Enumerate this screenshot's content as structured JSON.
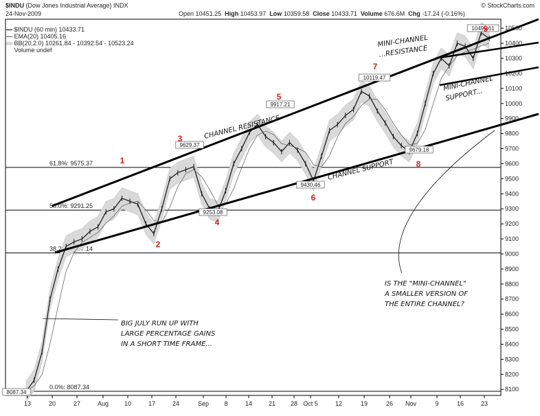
{
  "header": {
    "symbol": "$INDU",
    "name": "(Dow Jones Industrial Average)",
    "exchange": "INDX",
    "date": "24-Nov-2009",
    "credit": "© StockCharts.com",
    "ohlc": [
      {
        "label": "Open",
        "value": "10451.25"
      },
      {
        "label": "High",
        "value": "10453.97"
      },
      {
        "label": "Low",
        "value": "10359.58"
      },
      {
        "label": "Close",
        "value": "10433.71"
      },
      {
        "label": "Volume",
        "value": "676.6M"
      },
      {
        "label": "Chg",
        "value": "-17.24 (-0.16%)"
      }
    ]
  },
  "legend": {
    "price": "$INDU (60 min) 10433.71",
    "ema": "EMA(20) 10405.16",
    "bb": "BB(20,2.0) 10261.84 - 10392.54 - 10523.24",
    "volume": "Volume undef"
  },
  "chart_data": {
    "type": "line",
    "series": [
      {
        "name": "$INDU (60 min)",
        "x": [
          "Jul 10",
          "Jul 13",
          "Jul 15",
          "Jul 17",
          "Jul 20",
          "Jul 22",
          "Jul 24",
          "Jul 27",
          "Jul 29",
          "Jul 31",
          "Aug 3",
          "Aug 5",
          "Aug 7",
          "Aug 10",
          "Aug 12",
          "Aug 14",
          "Aug 17",
          "Aug 19",
          "Aug 21",
          "Aug 24",
          "Aug 26",
          "Aug 28",
          "Aug 31",
          "Sep 2",
          "Sep 4",
          "Sep 8",
          "Sep 10",
          "Sep 14",
          "Sep 16",
          "Sep 18",
          "Sep 21",
          "Sep 23",
          "Sep 25",
          "Sep 28",
          "Sep 30",
          "Oct 2",
          "Oct 5",
          "Oct 7",
          "Oct 9",
          "Oct 12",
          "Oct 14",
          "Oct 16",
          "Oct 19",
          "Oct 21",
          "Oct 23",
          "Oct 26",
          "Oct 28",
          "Oct 30",
          "Nov 2",
          "Nov 4",
          "Nov 6",
          "Nov 9",
          "Nov 11",
          "Nov 13",
          "Nov 16",
          "Nov 18",
          "Nov 20",
          "Nov 23",
          "Nov 24"
        ],
        "values": [
          8087,
          8160,
          8350,
          8700,
          8900,
          9050,
          9080,
          9100,
          9150,
          9180,
          9280,
          9300,
          9370,
          9350,
          9330,
          9200,
          9135,
          9300,
          9500,
          9540,
          9560,
          9580,
          9400,
          9300,
          9280,
          9420,
          9600,
          9700,
          9810,
          9860,
          9780,
          9740,
          9680,
          9740,
          9690,
          9600,
          9487,
          9650,
          9820,
          9860,
          9920,
          9960,
          10080,
          10050,
          9950,
          9870,
          9780,
          9720,
          9680,
          9800,
          10000,
          10200,
          10300,
          10250,
          10400,
          10380,
          10300,
          10470,
          10433
        ]
      }
    ],
    "horizontal_levels": [
      {
        "label": "61.8%: 9575.37",
        "value": 9575.37
      },
      {
        "label": "50.0%: 9291.25",
        "value": 9291.25
      },
      {
        "label": "38.2%: 9007.14",
        "value": 9007.14
      },
      {
        "label": "0.0%: 8087.34",
        "value": 8087.34
      }
    ],
    "price_labels": [
      {
        "text": "8087.34",
        "value": 8087.34
      },
      {
        "text": "9629.37",
        "value": 9629.37
      },
      {
        "text": "9253.08",
        "value": 9253.08
      },
      {
        "text": "9917.21",
        "value": 9917.21
      },
      {
        "text": "9430.46",
        "value": 9430.46
      },
      {
        "text": "10119.47",
        "value": 10119.47
      },
      {
        "text": "9679.18",
        "value": 9679.18
      },
      {
        "text": "10495.61",
        "value": 10495.61
      }
    ],
    "point_labels": [
      "1",
      "2",
      "3",
      "4",
      "5",
      "6",
      "7",
      "8",
      "9"
    ],
    "x_tick_labels": [
      "13",
      "20",
      "27",
      "Aug",
      "10",
      "17",
      "24",
      "Sep",
      "8",
      "14",
      "21",
      "28",
      "Oct 5",
      "12",
      "19",
      "26",
      "Nov",
      "9",
      "16",
      "23"
    ],
    "y_tick_labels": [
      "10500",
      "10400",
      "10300",
      "10200",
      "10100",
      "10000",
      "9900",
      "9800",
      "9700",
      "9600",
      "9500",
      "9400",
      "9300",
      "9200",
      "9100",
      "9000",
      "8900",
      "8800",
      "8700",
      "8600",
      "8500",
      "8400",
      "8300",
      "8200",
      "8100"
    ],
    "ylim": [
      8060,
      10560
    ],
    "y_axis_position": "right",
    "grid": false,
    "annotations": [
      {
        "text": "CHANNEL RESISTANCE"
      },
      {
        "text": "CHANNEL SUPPORT"
      },
      {
        "text": "MINI-CHANNEL ...RESISTANCE"
      },
      {
        "text": "MINI-CHANNEL SUPPORT..."
      },
      {
        "text": "BIG JULY RUN UP WITH LARGE PERCENTAGE GAINS IN A SHORT TIME FRAME..."
      },
      {
        "text": "IS THE \"MINI-CHANNEL\" A SMALLER VERSION OF THE ENTIRE CHANNEL?"
      }
    ],
    "colors": {
      "price": "#111111",
      "band": "#d9d9d9",
      "numbers": "#cc2222",
      "trendline": "#000000"
    }
  }
}
